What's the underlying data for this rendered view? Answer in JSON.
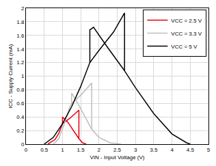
{
  "chart_data": {
    "type": "line",
    "x_label": "VIN - Input Voltage (V)",
    "y_label": "ICC - Supply Current (mA)",
    "xlim": [
      0,
      5
    ],
    "xticks": [
      0,
      0.5,
      1,
      1.5,
      2,
      2.5,
      3,
      3.5,
      4,
      4.5,
      5
    ],
    "ylim": [
      0,
      2
    ],
    "yticks": [
      0,
      0.2,
      0.4,
      0.6,
      0.8,
      1,
      1.2,
      1.4,
      1.6,
      1.8,
      2
    ],
    "grid": true,
    "legend": "top-right",
    "series": [
      {
        "name": "VCC = 2.5 V",
        "color": "#e0000f",
        "x": [
          0.6,
          0.8,
          0.9,
          1.0,
          1.2,
          1.45,
          1.45,
          1.55,
          1.65,
          null,
          1.0,
          1.0,
          1.15,
          1.3,
          1.45
        ],
        "values": [
          0,
          0.07,
          0.16,
          0.3,
          0.38,
          0.5,
          0.08,
          0.02,
          0,
          null,
          0.3,
          0.4,
          0.32,
          0.2,
          0.08
        ]
      },
      {
        "name": "VCC = 3.3 V",
        "color": "#bebebe",
        "x": [
          0.75,
          0.9,
          1.05,
          1.2,
          1.25,
          1.5,
          1.8,
          1.8,
          2.0,
          2.3,
          2.6,
          null,
          1.25,
          1.25,
          1.4,
          1.6,
          1.8
        ],
        "values": [
          0,
          0.08,
          0.3,
          0.55,
          0.6,
          0.72,
          0.9,
          0.22,
          0.1,
          0.02,
          0,
          null,
          0.6,
          0.75,
          0.62,
          0.42,
          0.22
        ]
      },
      {
        "name": "VCC = 5 V",
        "color": "#000000",
        "x": [
          0.5,
          0.75,
          1.0,
          1.25,
          1.5,
          1.75,
          2.0,
          2.4,
          2.7,
          2.7,
          3.0,
          3.5,
          4.0,
          4.4,
          4.5,
          null,
          1.75,
          1.75,
          1.85,
          2.2,
          2.7
        ],
        "values": [
          0,
          0.1,
          0.3,
          0.55,
          0.85,
          1.2,
          1.38,
          1.65,
          1.93,
          1.08,
          0.83,
          0.45,
          0.15,
          0.02,
          0,
          null,
          1.2,
          1.68,
          1.72,
          1.45,
          1.08
        ]
      }
    ]
  }
}
